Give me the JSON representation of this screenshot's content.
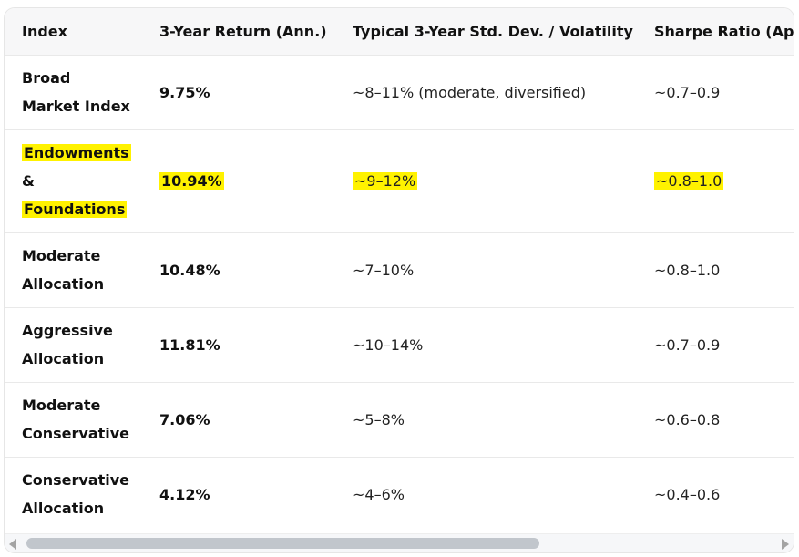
{
  "table": {
    "headers": [
      "Index",
      "3-Year Return (Ann.)",
      "Typical 3-Year Std. Dev. / Volatility",
      "Sharpe Ratio (Approx.)"
    ],
    "rows": [
      {
        "index": [
          "Broad",
          "Market Index"
        ],
        "return": "9.75%",
        "volatility": "~8–11% (moderate, diversified)",
        "sharpe": "~0.7–0.9",
        "highlighted": false
      },
      {
        "index": [
          "Endowments",
          "&",
          "Foundations"
        ],
        "return": "10.94%",
        "volatility": "~9–12%",
        "sharpe": "~0.8–1.0",
        "highlighted": true
      },
      {
        "index": [
          "Moderate",
          "Allocation"
        ],
        "return": "10.48%",
        "volatility": "~7–10%",
        "sharpe": "~0.8–1.0",
        "highlighted": false
      },
      {
        "index": [
          "Aggressive",
          "Allocation"
        ],
        "return": "11.81%",
        "volatility": "~10–14%",
        "sharpe": "~0.7–0.9",
        "highlighted": false
      },
      {
        "index": [
          "Moderate",
          "Conservative"
        ],
        "return": "7.06%",
        "volatility": "~5–8%",
        "sharpe": "~0.6–0.8",
        "highlighted": false
      },
      {
        "index": [
          "Conservative",
          "Allocation"
        ],
        "return": "4.12%",
        "volatility": "~4–6%",
        "sharpe": "~0.4–0.6",
        "highlighted": false
      }
    ]
  },
  "scrollbar": {
    "horizontal_position": 0.0,
    "visible_fraction": 0.67
  },
  "colors": {
    "highlight": "#fff200",
    "header_bg": "#f7f7f8",
    "border": "#e9e9e9"
  },
  "icons": {
    "scroll_left": "left-arrow-icon",
    "scroll_right": "right-arrow-icon"
  }
}
